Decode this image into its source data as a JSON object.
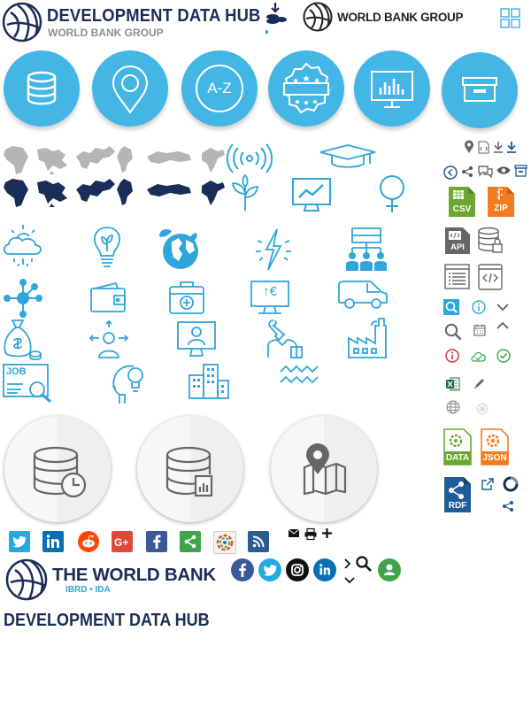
{
  "header": {
    "title": "DEVELOPMENT DATA HUB",
    "subtitle": "WORLD BANK GROUP",
    "wbg_logo_text": "WORLD BANK GROUP"
  },
  "category_circles": [
    {
      "name": "database",
      "text": ""
    },
    {
      "name": "location",
      "text": ""
    },
    {
      "name": "a-z",
      "text": "A-Z"
    },
    {
      "name": "featured",
      "text": ""
    },
    {
      "name": "dashboard",
      "text": ""
    },
    {
      "name": "archive",
      "text": ""
    }
  ],
  "badges": {
    "csv": "CSV",
    "zip": "ZIP",
    "api": "API",
    "data": "DATA",
    "json": "JSON",
    "rdf": "RDF",
    "job": "JOB",
    "euro": "↑€"
  },
  "colors": {
    "accent": "#44b6e6",
    "navy": "#1a2d58",
    "icon_blue": "#2fa6db",
    "green": "#6aa831",
    "orange": "#f47b20",
    "red": "#d32f2f"
  },
  "footer": {
    "logo_title": "THE WORLD BANK",
    "logo_sub": "IBRD • IDA",
    "page_title": "DEVELOPMENT DATA HUB"
  }
}
